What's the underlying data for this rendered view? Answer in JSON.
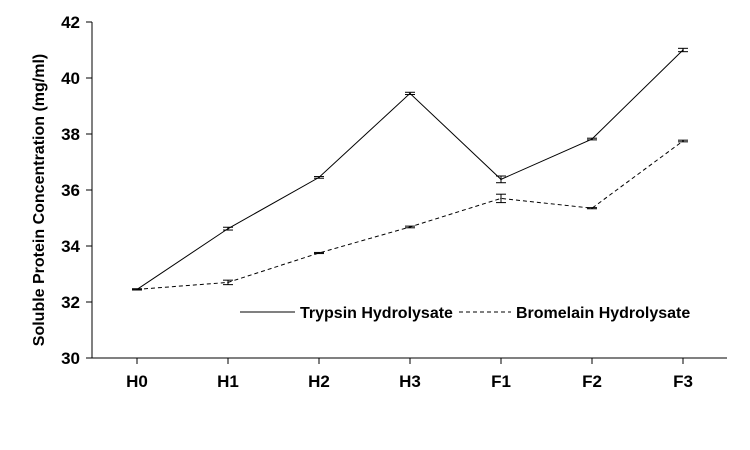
{
  "chart_data": {
    "type": "line",
    "categories": [
      "H0",
      "H1",
      "H2",
      "H3",
      "F1",
      "F2",
      "F3"
    ],
    "ylabel": "Soluble Protein Concentration (mg/ml)",
    "xlabel": "",
    "ylim": [
      30,
      42
    ],
    "yticks": [
      30,
      32,
      34,
      36,
      38,
      40,
      42
    ],
    "grid": false,
    "legend_position": "bottom-right",
    "series": [
      {
        "name": "Trypsin Hydrolysate",
        "style": "solid",
        "color": "#000000",
        "values": [
          32.45,
          34.62,
          36.45,
          39.45,
          36.38,
          37.82,
          41.0
        ],
        "errors": [
          0.02,
          0.05,
          0.03,
          0.04,
          0.12,
          0.03,
          0.06
        ]
      },
      {
        "name": "Bromelain Hydrolysate",
        "style": "dashed",
        "color": "#000000",
        "values": [
          32.45,
          32.7,
          33.75,
          34.68,
          35.7,
          35.35,
          37.75
        ],
        "errors": [
          0.02,
          0.08,
          0.02,
          0.03,
          0.15,
          0.02,
          0.03
        ]
      }
    ]
  }
}
